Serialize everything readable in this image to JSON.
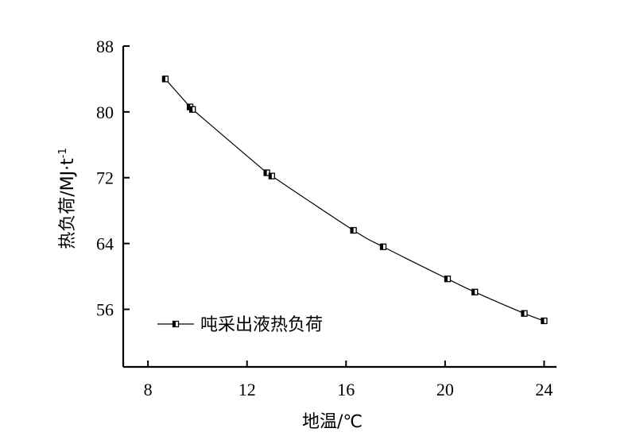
{
  "chart_data": {
    "type": "line",
    "xlabel": "地温/℃",
    "ylabel": "热负荷/MJ·t",
    "ylabel_sup": "-1",
    "xlim": [
      7,
      24.5
    ],
    "ylim": [
      49,
      88
    ],
    "x_ticks": [
      8,
      12,
      16,
      20,
      24
    ],
    "y_ticks": [
      56,
      64,
      72,
      80,
      88
    ],
    "legend_position": "lower-left",
    "series": [
      {
        "name": "吨采出液热负荷",
        "marker": "half-filled-square",
        "x": [
          8.7,
          9.7,
          9.8,
          12.8,
          13.0,
          16.3,
          17.5,
          20.1,
          21.2,
          23.2,
          24.0
        ],
        "y": [
          84.0,
          80.6,
          80.3,
          72.6,
          72.2,
          65.6,
          63.6,
          59.7,
          58.1,
          55.5,
          54.6
        ]
      }
    ]
  }
}
